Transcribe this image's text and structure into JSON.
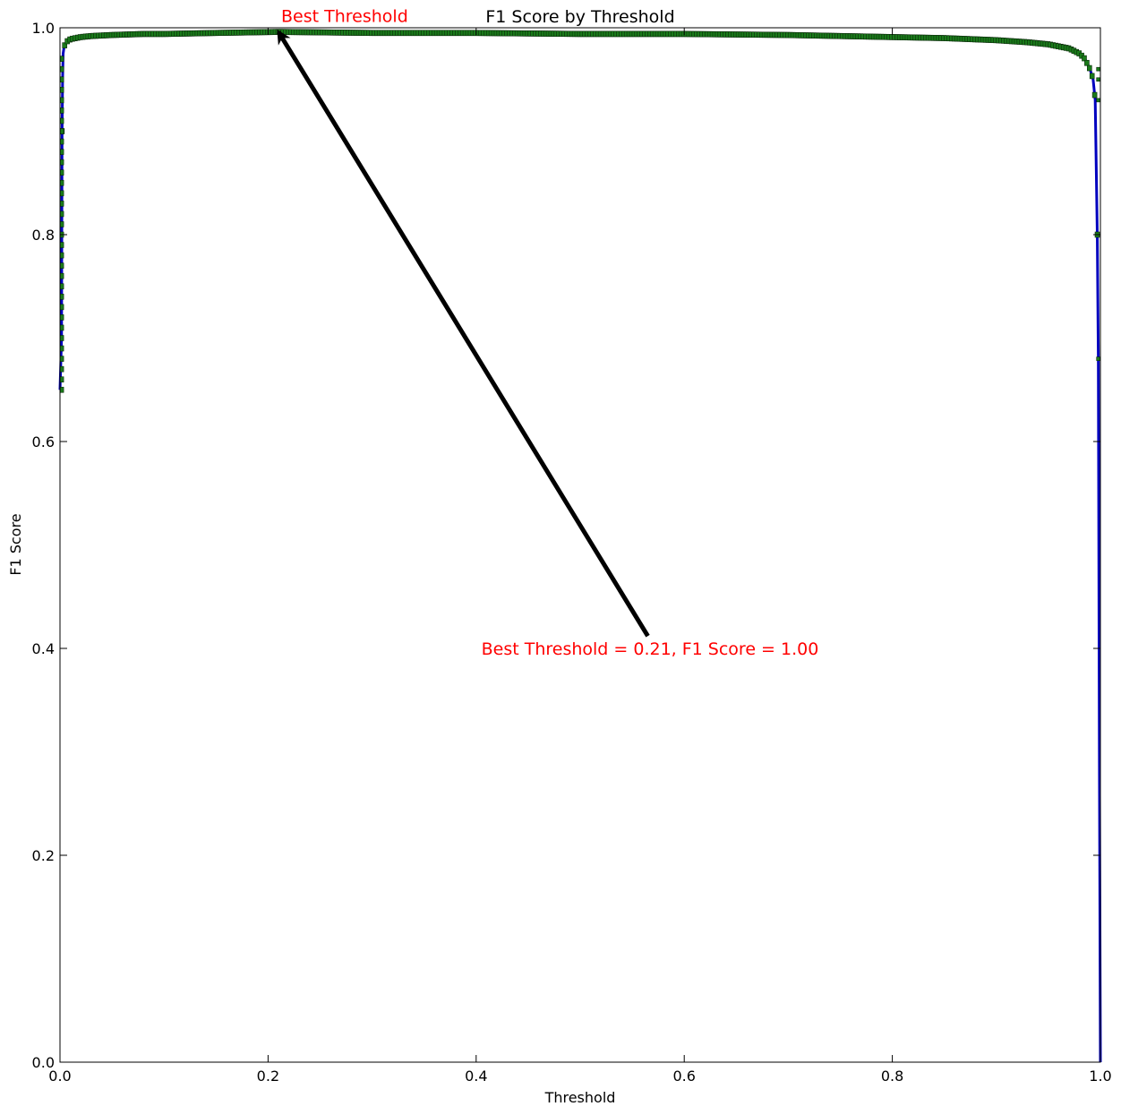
{
  "chart_data": {
    "type": "line",
    "title": "F1 Score by Threshold",
    "xlabel": "Threshold",
    "ylabel": "F1 Score",
    "xlim": [
      0.0,
      1.0
    ],
    "ylim": [
      0.0,
      1.0
    ],
    "xticks": [
      "0.0",
      "0.2",
      "0.4",
      "0.6",
      "0.8",
      "1.0"
    ],
    "yticks": [
      "0.0",
      "0.2",
      "0.4",
      "0.6",
      "0.8",
      "1.0"
    ],
    "grid": false,
    "colors": {
      "line": "#0000bf",
      "markers": "#1a7a1a",
      "annotation": "#ff0000",
      "arrow": "#000000"
    },
    "series": [
      {
        "x": [
          0.0,
          0.0015,
          0.002,
          0.0025,
          0.003,
          0.004,
          0.005,
          0.007,
          0.01,
          0.015,
          0.02,
          0.03,
          0.05,
          0.08,
          0.1,
          0.15,
          0.21,
          0.3,
          0.4,
          0.5,
          0.6,
          0.7,
          0.8,
          0.85,
          0.9,
          0.93,
          0.95,
          0.97,
          0.98,
          0.985,
          0.99,
          0.993,
          0.995,
          0.997,
          0.998,
          0.999,
          1.0
        ],
        "y": [
          0.65,
          0.7,
          0.9,
          0.95,
          0.975,
          0.982,
          0.984,
          0.987,
          0.989,
          0.99,
          0.991,
          0.992,
          0.993,
          0.994,
          0.994,
          0.995,
          0.996,
          0.995,
          0.995,
          0.994,
          0.994,
          0.993,
          0.991,
          0.99,
          0.988,
          0.986,
          0.984,
          0.98,
          0.975,
          0.97,
          0.96,
          0.95,
          0.93,
          0.8,
          0.68,
          0.3,
          0.0
        ]
      }
    ],
    "annotations": [
      {
        "text": "Best Threshold",
        "x": 0.21,
        "y": 1.01
      },
      {
        "text": "Best Threshold = 0.21, F1 Score = 1.00",
        "x": 0.405,
        "y": 0.4,
        "arrow_from": [
          0.565,
          0.412
        ],
        "arrow_to": [
          0.21,
          0.996
        ]
      }
    ]
  }
}
